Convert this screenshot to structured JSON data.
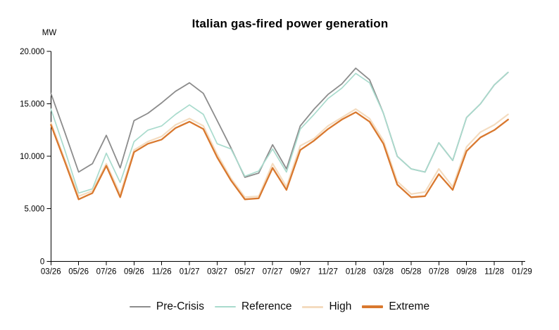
{
  "chart_data": {
    "type": "line",
    "title": "Italian gas-fired power generation",
    "ylabel": "MW",
    "xlabel": "",
    "ylim": [
      0,
      20000
    ],
    "grid": false,
    "legend_position": "bottom",
    "y_tick_values": [
      20000,
      15000,
      10000,
      5000,
      0
    ],
    "y_tick_labels": [
      "20.000",
      "15.000",
      "10.000",
      "5.000",
      "0"
    ],
    "x_axis_tick_labels": [
      "03/26",
      "05/26",
      "07/26",
      "09/26",
      "11/26",
      "01/27",
      "03/27",
      "05/27",
      "07/27",
      "09/27",
      "11/27",
      "01/28",
      "03/28",
      "05/28",
      "07/28",
      "09/28",
      "11/28",
      "01/29"
    ],
    "x": [
      "03/26",
      "04/26",
      "05/26",
      "06/26",
      "07/26",
      "08/26",
      "09/26",
      "10/26",
      "11/26",
      "12/26",
      "01/27",
      "02/27",
      "03/27",
      "04/27",
      "05/27",
      "06/27",
      "07/27",
      "08/27",
      "09/27",
      "10/27",
      "11/27",
      "12/27",
      "01/28",
      "02/28",
      "03/28",
      "04/28",
      "05/28",
      "06/28",
      "07/28",
      "08/28",
      "09/28",
      "10/28",
      "11/28",
      "12/28"
    ],
    "series": [
      {
        "name": "Pre-Crisis",
        "color": "#8c8c8c",
        "values": [
          16000,
          12300,
          8500,
          9300,
          12000,
          8900,
          13400,
          14100,
          15100,
          16200,
          17000,
          16000,
          13400,
          10800,
          8000,
          8400,
          11100,
          8800,
          12900,
          14500,
          15900,
          16900,
          18400,
          17300,
          14100,
          10000,
          8800,
          8500,
          11300,
          9600,
          13700,
          15000,
          16800,
          18000
        ]
      },
      {
        "name": "Reference",
        "color": "#a9dbcd",
        "values": [
          14500,
          10600,
          6500,
          6900,
          10300,
          7500,
          11400,
          12500,
          12900,
          14000,
          14900,
          14000,
          11200,
          10700,
          8100,
          8600,
          10700,
          8500,
          12600,
          14000,
          15500,
          16500,
          17900,
          17000,
          14100,
          10000,
          8800,
          8500,
          11300,
          9600,
          13700,
          15000,
          16800,
          18000
        ]
      },
      {
        "name": "High",
        "color": "#f4dcc0",
        "values": [
          13200,
          9700,
          6200,
          6700,
          9300,
          6400,
          10600,
          11400,
          11900,
          13000,
          13600,
          12900,
          10200,
          7900,
          6100,
          6200,
          9300,
          7100,
          11000,
          11700,
          12900,
          13700,
          14500,
          13600,
          11500,
          7600,
          6400,
          6600,
          8800,
          7100,
          10900,
          12300,
          13000,
          14000
        ]
      },
      {
        "name": "Extreme",
        "color": "#d9782e",
        "values": [
          13000,
          9500,
          5900,
          6500,
          9100,
          6100,
          10400,
          11200,
          11600,
          12700,
          13300,
          12600,
          9900,
          7700,
          5900,
          6000,
          8900,
          6800,
          10600,
          11500,
          12600,
          13500,
          14200,
          13300,
          11200,
          7300,
          6100,
          6200,
          8300,
          6800,
          10500,
          11800,
          12500,
          13500
        ]
      }
    ]
  }
}
